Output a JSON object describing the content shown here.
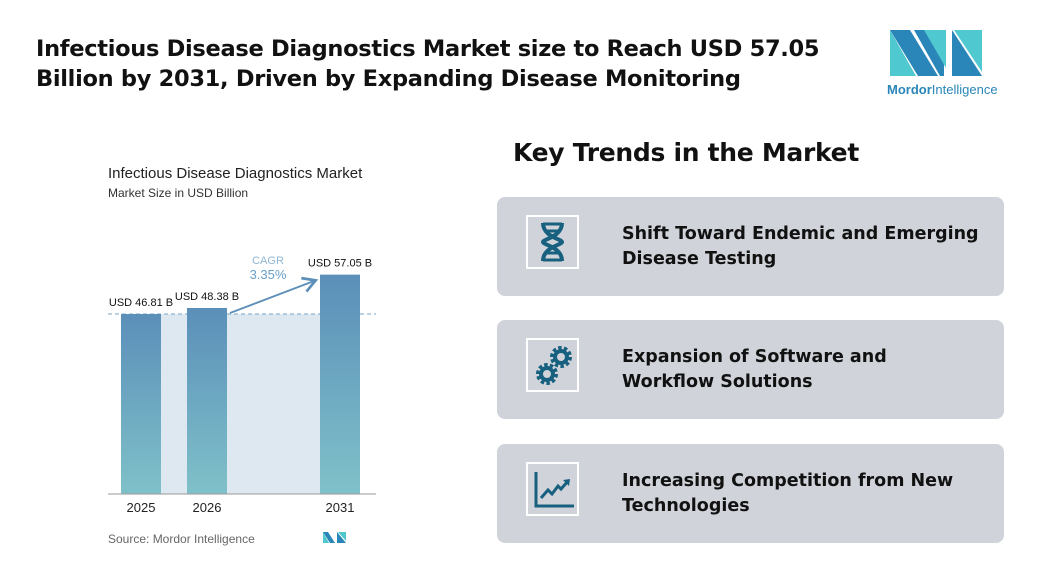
{
  "header": {
    "title": "Infectious Disease Diagnostics Market size to Reach USD 57.05 Billion by 2031, Driven by Expanding Disease Monitoring"
  },
  "logo": {
    "text_bold": "Mordor",
    "text_rest": "Intelligence"
  },
  "chart_data": {
    "type": "bar",
    "title": "Infectious Disease Diagnostics Market",
    "subtitle": "Market Size in USD Billion",
    "categories": [
      "2025",
      "2026",
      "2031"
    ],
    "values": [
      46.81,
      48.38,
      57.05
    ],
    "data_labels": [
      "USD 46.81 B",
      "USD 48.38 B",
      "USD 57.05 B"
    ],
    "annotation": {
      "label": "CAGR",
      "value": "3.35%"
    },
    "source": "Source: Mordor Intelligence",
    "colors": {
      "bar_top": "#5b8fb9",
      "bar_bottom": "#7fc1c9",
      "band": "#dde8f0",
      "annotation": "#6aa0c8"
    }
  },
  "trends": {
    "title": "Key Trends in the Market",
    "items": [
      {
        "icon": "dna-icon",
        "label": "Shift Toward Endemic and Emerging Disease Testing"
      },
      {
        "icon": "gears-icon",
        "label": "Expansion of Software and Workflow Solutions"
      },
      {
        "icon": "trending-chart-icon",
        "label": "Increasing Competition from New Technologies"
      }
    ],
    "icon_color": "#17607f"
  }
}
